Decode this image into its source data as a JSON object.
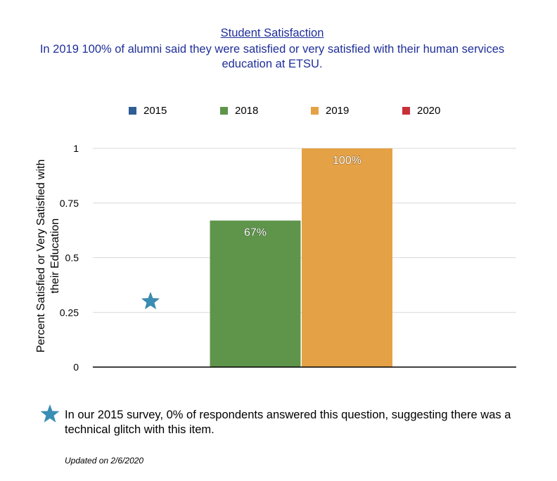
{
  "chart_data": {
    "type": "bar",
    "title": "Student Satisfaction",
    "subtitle": "In 2019 100% of alumni said they were satisfied or very satisfied with their human services education at ETSU.",
    "ylabel": "Percent Satisfied or Very Satisfied with their Education",
    "xlabel": "",
    "ylim": [
      0,
      1
    ],
    "y_ticks": [
      {
        "value": 0,
        "label": "0"
      },
      {
        "value": 0.25,
        "label": "0.25"
      },
      {
        "value": 0.5,
        "label": "0.5"
      },
      {
        "value": 0.75,
        "label": "0.75"
      },
      {
        "value": 1,
        "label": "1"
      }
    ],
    "grid": true,
    "legend_position": "top",
    "series": [
      {
        "name": "2015",
        "value": 0,
        "data_label": "",
        "color": "#2f5d95"
      },
      {
        "name": "2018",
        "value": 0.67,
        "data_label": "67%",
        "color": "#5e954b"
      },
      {
        "name": "2019",
        "value": 1.0,
        "data_label": "100%",
        "color": "#e5a145"
      },
      {
        "name": "2020",
        "value": null,
        "data_label": "",
        "color": "#c83039"
      }
    ],
    "annotations": [
      {
        "marker": "star",
        "series": "2015",
        "y": 0.3,
        "color": "#3a8db4"
      }
    ]
  },
  "footnote": {
    "text": "In our 2015 survey, 0% of respondents answered this question, suggesting there was a technical glitch with this item.",
    "icon": "star-icon",
    "icon_color": "#3a8db4"
  },
  "updated": "Updated on 2/6/2020"
}
